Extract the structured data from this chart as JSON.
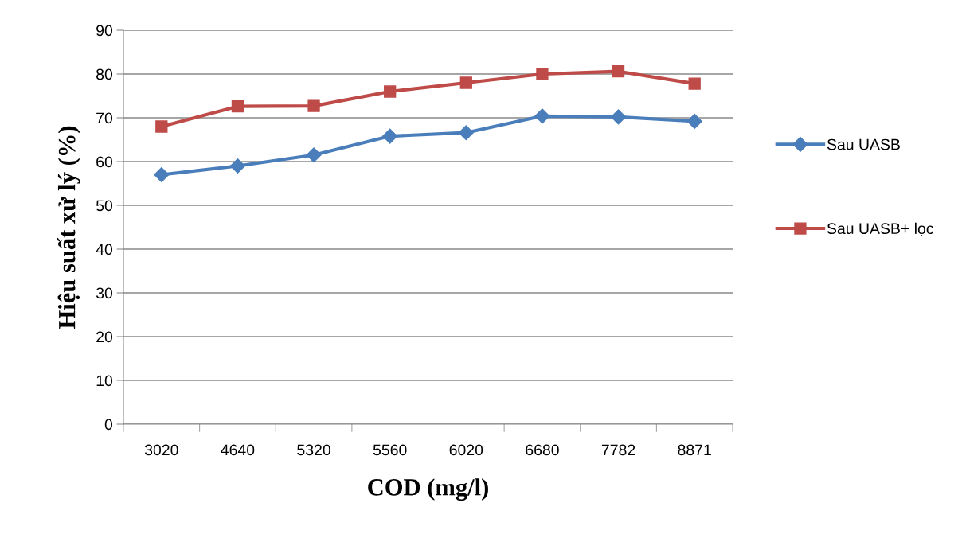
{
  "chart_data": {
    "type": "line",
    "xlabel": "COD (mg/l)",
    "ylabel": "Hiệu suất xử lý (%)",
    "categories": [
      "3020",
      "4640",
      "5320",
      "5560",
      "6020",
      "6680",
      "7782",
      "8871"
    ],
    "series": [
      {
        "name": "Sau UASB",
        "color": "#4a7ebb",
        "marker": "diamond",
        "values": [
          57,
          59,
          61.5,
          65.8,
          66.6,
          70.4,
          70.2,
          69.2
        ]
      },
      {
        "name": "Sau UASB+ lọc",
        "color": "#be4b48",
        "marker": "square",
        "values": [
          68,
          72.6,
          72.7,
          76,
          78,
          80,
          80.6,
          77.8
        ]
      }
    ],
    "ylim": [
      0,
      90
    ],
    "yticks": [
      0,
      10,
      20,
      30,
      40,
      50,
      60,
      70,
      80,
      90
    ],
    "grid": "y",
    "legend": "right",
    "line_style": "solid"
  }
}
